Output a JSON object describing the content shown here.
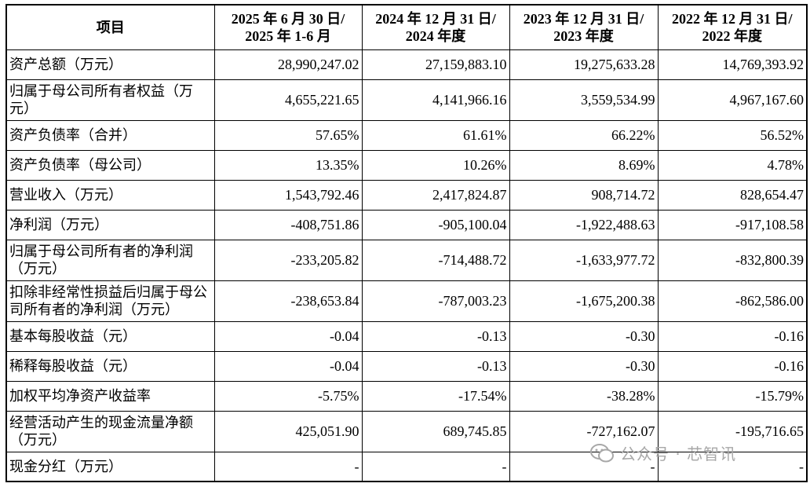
{
  "table": {
    "header": [
      [
        "项目"
      ],
      [
        "2025 年 6 月 30 日/",
        "2025 年 1-6 月"
      ],
      [
        "2024 年 12 月 31 日/",
        "2024 年度"
      ],
      [
        "2023 年 12 月 31 日/",
        "2023 年度"
      ],
      [
        "2022 年 12 月 31 日/",
        "2022 年度"
      ]
    ],
    "rows": [
      [
        "资产总额（万元）",
        "28,990,247.02",
        "27,159,883.10",
        "19,275,633.28",
        "14,769,393.92"
      ],
      [
        "归属于母公司所有者权益（万元）",
        "4,655,221.65",
        "4,141,966.16",
        "3,559,534.99",
        "4,967,167.60"
      ],
      [
        "资产负债率（合并）",
        "57.65%",
        "61.61%",
        "66.22%",
        "56.52%"
      ],
      [
        "资产负债率（母公司）",
        "13.35%",
        "10.26%",
        "8.69%",
        "4.78%"
      ],
      [
        "营业收入（万元）",
        "1,543,792.46",
        "2,417,824.87",
        "908,714.72",
        "828,654.47"
      ],
      [
        "净利润（万元）",
        "-408,751.86",
        "-905,100.04",
        "-1,922,488.63",
        "-917,108.58"
      ],
      [
        "归属于母公司所有者的净利润（万元）",
        "-233,205.82",
        "-714,488.72",
        "-1,633,977.72",
        "-832,800.39"
      ],
      [
        "扣除非经常性损益后归属于母公司所有者的净利润（万元）",
        "-238,653.84",
        "-787,003.23",
        "-1,675,200.38",
        "-862,586.00"
      ],
      [
        "基本每股收益（元）",
        "-0.04",
        "-0.13",
        "-0.30",
        "-0.16"
      ],
      [
        "稀释每股收益（元）",
        "-0.04",
        "-0.13",
        "-0.30",
        "-0.16"
      ],
      [
        "加权平均净资产收益率",
        "-5.75%",
        "-17.54%",
        "-38.28%",
        "-15.79%"
      ],
      [
        "经营活动产生的现金流量净额（万元）",
        "425,051.90",
        "689,745.85",
        "-727,162.07",
        "-195,716.65"
      ],
      [
        "现金分红（万元）",
        "-",
        "-",
        "-",
        "-"
      ]
    ]
  },
  "watermark": "公众号 · 芯智讯"
}
